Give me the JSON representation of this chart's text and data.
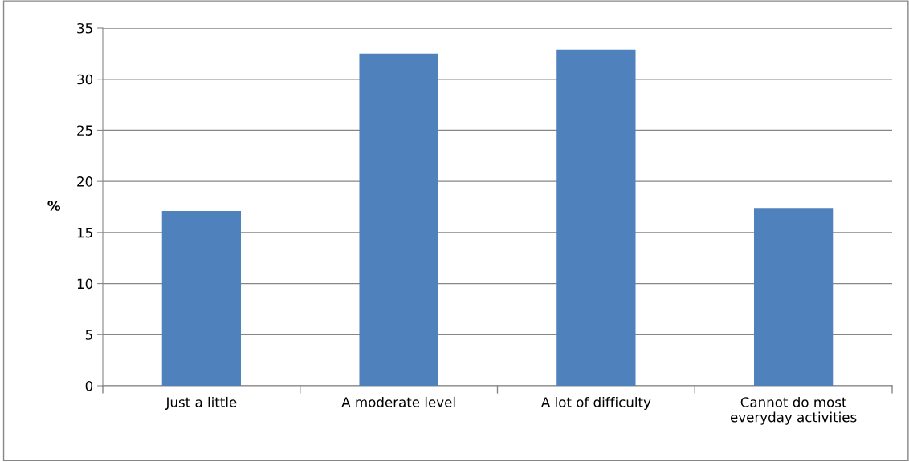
{
  "chart_data": {
    "type": "bar",
    "ylabel": "%",
    "categories": [
      "Just a little",
      "A moderate level",
      "A lot of difficulty",
      "Cannot do most\neveryday activities"
    ],
    "values": [
      17.1,
      32.5,
      32.9,
      17.4
    ],
    "color": "#4f81bd",
    "ylim": [
      0,
      35
    ],
    "yticks": [
      0,
      5,
      10,
      15,
      20,
      25,
      30,
      35
    ],
    "grid": "y"
  }
}
